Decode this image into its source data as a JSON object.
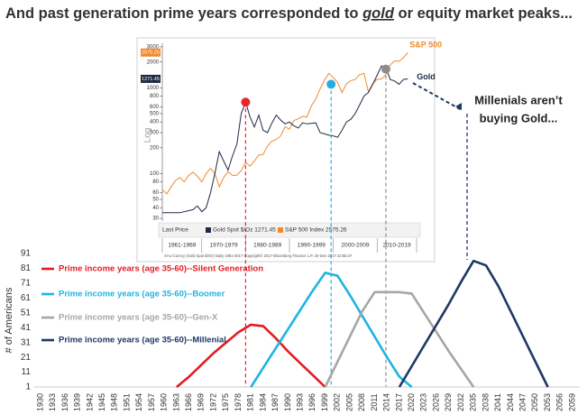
{
  "title": [
    "And past generation prime years corresponded to ",
    "gold",
    " or equity market peaks..."
  ],
  "annotation": [
    "Millenials aren’t",
    "buying Gold..."
  ],
  "chart_data": [
    {
      "type": "line",
      "log_scale": true,
      "y_label": "Log",
      "legend_prefix": "Last Price",
      "footnote": "XAU Curncy (Gold Spot $/Oz) Daily 1961-2017   Copyright© 2017 Bloomberg Finance L.P.   20-Dec-2017 22:55:47",
      "xlim": [
        1961,
        2019
      ],
      "ylim": [
        28,
        3300
      ],
      "yticks": [
        30,
        40,
        50,
        60,
        80,
        100,
        200,
        300,
        400,
        500,
        600,
        800,
        1000,
        2000,
        3000
      ],
      "xticks": [
        1961,
        1970,
        1980,
        1990,
        2000,
        2010,
        2019
      ],
      "decade_labels": [
        "1961-1969",
        "1970-1979",
        "1980-1989",
        "1990-1999",
        "2000-2009",
        "2010-2019"
      ],
      "series": [
        {
          "name": "S&P 500",
          "color": "#f08a2c",
          "legend_label": "S&P 500 Index 2575.26",
          "last_label": "2575.26",
          "x": [
            1961,
            1962,
            1963,
            1964,
            1965,
            1966,
            1967,
            1968,
            1969,
            1970,
            1971,
            1972,
            1973,
            1974,
            1975,
            1976,
            1977,
            1978,
            1979,
            1980,
            1981,
            1982,
            1983,
            1984,
            1985,
            1986,
            1987,
            1988,
            1989,
            1990,
            1991,
            1992,
            1993,
            1994,
            1995,
            1996,
            1997,
            1998,
            1999,
            2000,
            2001,
            2002,
            2003,
            2004,
            2005,
            2006,
            2007,
            2008,
            2009,
            2010,
            2011,
            2012,
            2013,
            2014,
            2015,
            2016,
            2017
          ],
          "values": [
            65,
            58,
            70,
            83,
            90,
            80,
            95,
            104,
            93,
            80,
            100,
            115,
            100,
            70,
            90,
            105,
            95,
            96,
            108,
            135,
            122,
            140,
            165,
            167,
            210,
            240,
            250,
            275,
            350,
            330,
            415,
            435,
            465,
            455,
            615,
            740,
            970,
            1230,
            1470,
            1320,
            1150,
            880,
            1110,
            1210,
            1250,
            1420,
            1470,
            900,
            1115,
            1260,
            1260,
            1425,
            1850,
            2060,
            2040,
            2240,
            2575.26
          ]
        },
        {
          "name": "Gold",
          "color": "#1f2a44",
          "legend_label": "Gold Spot $/Oz 1271.45",
          "last_label": "1271.45",
          "x": [
            1961,
            1965,
            1968,
            1969,
            1970,
            1971,
            1972,
            1973,
            1974,
            1975,
            1976,
            1977,
            1978,
            1979,
            1980,
            1981,
            1982,
            1983,
            1984,
            1985,
            1986,
            1987,
            1988,
            1989,
            1990,
            1991,
            1992,
            1993,
            1994,
            1995,
            1996,
            1997,
            1998,
            1999,
            2000,
            2001,
            2002,
            2003,
            2004,
            2005,
            2006,
            2007,
            2008,
            2009,
            2010,
            2011,
            2012,
            2013,
            2014,
            2015,
            2016,
            2017
          ],
          "values": [
            35,
            35,
            38,
            42,
            36,
            40,
            60,
            100,
            180,
            140,
            110,
            160,
            220,
            500,
            680,
            460,
            350,
            480,
            320,
            300,
            390,
            480,
            420,
            380,
            400,
            360,
            340,
            390,
            380,
            385,
            390,
            300,
            290,
            280,
            275,
            265,
            320,
            400,
            430,
            500,
            630,
            800,
            880,
            1100,
            1400,
            1800,
            1700,
            1250,
            1200,
            1100,
            1250,
            1271.45
          ]
        }
      ],
      "markers": [
        {
          "x": 1980,
          "y": 680,
          "color": "#e8262a"
        },
        {
          "x": 1999.5,
          "y": 1100,
          "color": "#29abe2"
        },
        {
          "x": 2012,
          "y": 1650,
          "color": "#8c8c8c"
        }
      ]
    },
    {
      "type": "line",
      "y_label": "# of Americans",
      "ylim": [
        1,
        91
      ],
      "yticks": [
        1,
        11,
        21,
        31,
        41,
        51,
        61,
        71,
        81,
        91
      ],
      "categories": [
        "1930",
        "1933",
        "1936",
        "1939",
        "1942",
        "1945",
        "1948",
        "1951",
        "1954",
        "1957",
        "1960",
        "1963",
        "1966",
        "1969",
        "1972",
        "1975",
        "1978",
        "1981",
        "1984",
        "1987",
        "1990",
        "1993",
        "1996",
        "1999",
        "2002",
        "2005",
        "2008",
        "2011",
        "2014",
        "2017",
        "2020",
        "2023",
        "2026",
        "2029",
        "2032",
        "2035",
        "2038",
        "2041",
        "2044",
        "2047",
        "2050",
        "2053",
        "2056",
        "2059"
      ],
      "series": [
        {
          "name": "Prime income years (age 35-60)--Silent Generation",
          "color": "#e31b23",
          "values": [
            null,
            null,
            null,
            null,
            null,
            null,
            null,
            null,
            null,
            null,
            null,
            1,
            8,
            16,
            24,
            31,
            38,
            43,
            42,
            34,
            25,
            17,
            9,
            1,
            null,
            null,
            null,
            null,
            null,
            null,
            null,
            null,
            null,
            null,
            null,
            null,
            null,
            null,
            null,
            null,
            null,
            null,
            null,
            null
          ]
        },
        {
          "name": "Prime income years (age 35-60)--Boomer",
          "color": "#1fb4e3",
          "values": [
            null,
            null,
            null,
            null,
            null,
            null,
            null,
            null,
            null,
            null,
            null,
            null,
            null,
            null,
            null,
            null,
            null,
            1,
            14,
            27,
            40,
            53,
            66,
            78,
            76,
            63,
            49,
            35,
            21,
            8,
            1,
            null,
            null,
            null,
            null,
            null,
            null,
            null,
            null,
            null,
            null,
            null,
            null,
            null
          ]
        },
        {
          "name": "Prime income years (age 35-60)--Gen-X",
          "color": "#a6a6a6",
          "values": [
            null,
            null,
            null,
            null,
            null,
            null,
            null,
            null,
            null,
            null,
            null,
            null,
            null,
            null,
            null,
            null,
            null,
            null,
            null,
            null,
            null,
            null,
            null,
            1,
            18,
            35,
            52,
            65,
            65,
            65,
            64,
            51,
            38,
            25,
            13,
            1,
            null,
            null,
            null,
            null,
            null,
            null,
            null,
            null
          ]
        },
        {
          "name": "Prime income years (age 35-60)--Millenial",
          "color": "#1f3864",
          "values": [
            null,
            null,
            null,
            null,
            null,
            null,
            null,
            null,
            null,
            null,
            null,
            null,
            null,
            null,
            null,
            null,
            null,
            null,
            null,
            null,
            null,
            null,
            null,
            null,
            null,
            null,
            null,
            null,
            null,
            1,
            15,
            29,
            43,
            57,
            72,
            86,
            83,
            69,
            52,
            35,
            18,
            1,
            null,
            null
          ]
        }
      ]
    }
  ]
}
